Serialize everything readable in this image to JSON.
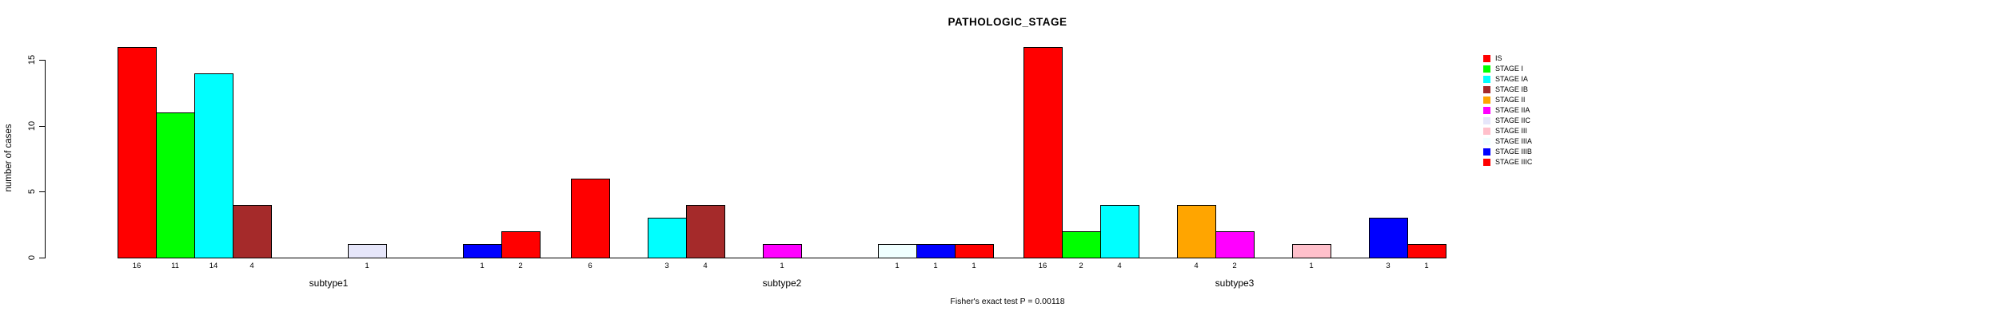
{
  "chart_data": {
    "type": "bar",
    "title": "PATHOLOGIC_STAGE",
    "ylabel": "number of cases",
    "xlabel": "",
    "footer": "Fisher's exact test P = 0.00118",
    "yticks": [
      0,
      5,
      10,
      15
    ],
    "ylim": [
      0,
      16
    ],
    "grid": false,
    "legend_position": "right-outside",
    "bar_value_labels": "shown under each nonzero bar",
    "categories": [
      "subtype1",
      "subtype2",
      "subtype3"
    ],
    "series": [
      {
        "name": "IS",
        "color": "#FF0000",
        "values": [
          16,
          6,
          16
        ]
      },
      {
        "name": "STAGE I",
        "color": "#00FF00",
        "values": [
          11,
          0,
          2
        ]
      },
      {
        "name": "STAGE IA",
        "color": "#00FFFF",
        "values": [
          14,
          3,
          4
        ]
      },
      {
        "name": "STAGE IB",
        "color": "#A52A2A",
        "values": [
          4,
          4,
          0
        ]
      },
      {
        "name": "STAGE II",
        "color": "#FFA500",
        "values": [
          0,
          0,
          4
        ]
      },
      {
        "name": "STAGE IIA",
        "color": "#FF00FF",
        "values": [
          0,
          1,
          2
        ]
      },
      {
        "name": "STAGE IIC",
        "color": "#E6E6FA",
        "values": [
          1,
          0,
          0
        ]
      },
      {
        "name": "STAGE III",
        "color": "#FFC0CB",
        "values": [
          0,
          0,
          1
        ]
      },
      {
        "name": "STAGE IIIA",
        "color": "#F0FFFF",
        "values": [
          0,
          1,
          0
        ]
      },
      {
        "name": "STAGE IIIB",
        "color": "#0000FF",
        "values": [
          1,
          1,
          3
        ]
      },
      {
        "name": "STAGE IIIC",
        "color": "#FF0000",
        "values": [
          2,
          1,
          1
        ]
      }
    ]
  }
}
